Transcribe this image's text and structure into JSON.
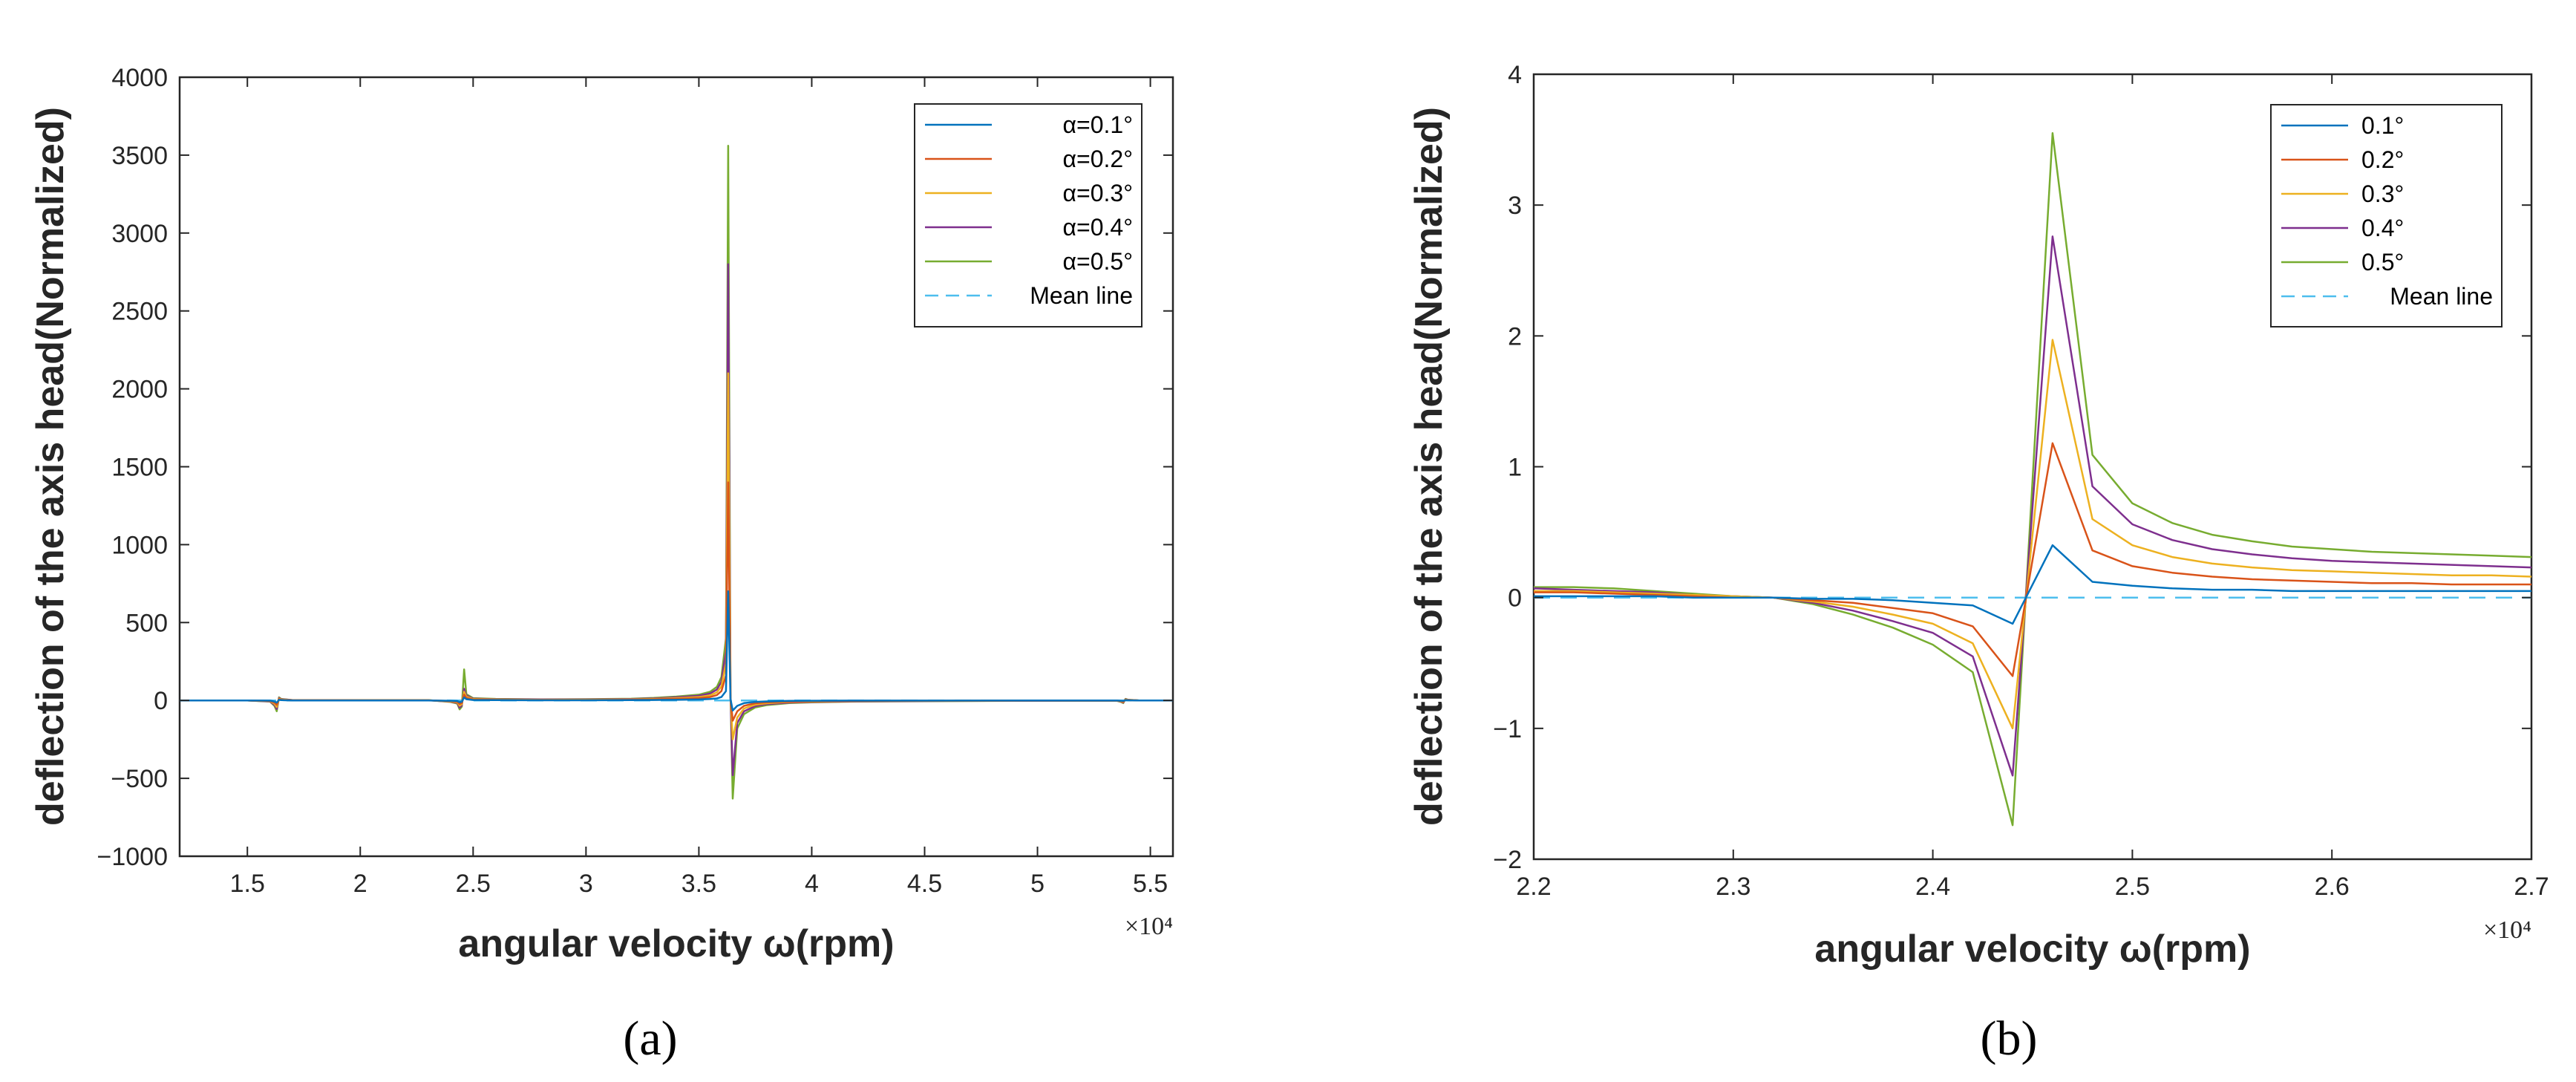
{
  "chart_data": [
    {
      "type": "line",
      "panel_caption": "(a)",
      "xlabel": "angular velocity ω(rpm)",
      "ylabel": "deflection of the axis head(Normalized)",
      "x_multiplier": "×10⁴",
      "xlim": [
        12000,
        56000
      ],
      "ylim": [
        -1000,
        4000
      ],
      "xticks": [
        15000,
        20000,
        25000,
        30000,
        35000,
        40000,
        45000,
        50000,
        55000
      ],
      "xtick_labels": [
        "1.5",
        "2",
        "2.5",
        "3",
        "3.5",
        "4",
        "4.5",
        "5",
        "5.5"
      ],
      "yticks": [
        -1000,
        -500,
        0,
        500,
        1000,
        1500,
        2000,
        2500,
        3000,
        3500,
        4000
      ],
      "ytick_labels": [
        "−1000",
        "−500",
        "0",
        "500",
        "1000",
        "1500",
        "2000",
        "2500",
        "3000",
        "3500",
        "4000"
      ],
      "legend_position": "top-right",
      "grid": false,
      "x": [
        12000,
        15000,
        16000,
        16200,
        16300,
        16400,
        16500,
        17000,
        20000,
        23000,
        24000,
        24300,
        24400,
        24500,
        24600,
        24700,
        25000,
        26000,
        28000,
        30000,
        32000,
        33000,
        34000,
        35000,
        35500,
        35800,
        36000,
        36200,
        36300,
        36400,
        36500,
        36700,
        37000,
        37500,
        38000,
        39000,
        40000,
        42000,
        45000,
        50000,
        53500,
        53700,
        53800,
        53900,
        54000,
        54500,
        56000
      ],
      "series": [
        {
          "name": "α=0.1°",
          "color": "#0072BD",
          "dash": false,
          "values": [
            0,
            0,
            -1,
            -7,
            -14,
            4,
            2,
            0,
            0,
            0,
            -2,
            -4,
            -11,
            -8,
            19,
            8,
            3,
            2,
            1,
            1,
            2,
            3,
            4,
            6,
            9,
            13,
            22,
            60,
            700,
            10,
            -65,
            -35,
            -17,
            -9,
            -6,
            -3,
            -2,
            -1,
            -1,
            0,
            0,
            -2,
            -3,
            2,
            1,
            0,
            0
          ]
        },
        {
          "name": "α=0.2°",
          "color": "#D95319",
          "dash": false,
          "values": [
            0,
            0,
            -3,
            -14,
            -28,
            8,
            4,
            1,
            1,
            1,
            -4,
            -8,
            -23,
            -16,
            37,
            16,
            6,
            4,
            3,
            3,
            5,
            7,
            10,
            15,
            22,
            35,
            60,
            160,
            1400,
            20,
            -130,
            -70,
            -35,
            -18,
            -12,
            -7,
            -5,
            -3,
            -2,
            -1,
            -1,
            -4,
            -7,
            4,
            2,
            0,
            0
          ]
        },
        {
          "name": "α=0.3°",
          "color": "#EDB120",
          "dash": false,
          "values": [
            0,
            0,
            -4,
            -21,
            -42,
            12,
            6,
            1,
            1,
            1,
            -6,
            -12,
            -34,
            -24,
            56,
            24,
            9,
            6,
            4,
            5,
            7,
            10,
            15,
            22,
            33,
            52,
            90,
            240,
            2100,
            30,
            -250,
            -110,
            -52,
            -27,
            -18,
            -10,
            -7,
            -4,
            -3,
            -1,
            -1,
            -6,
            -10,
            6,
            3,
            0,
            0
          ]
        },
        {
          "name": "α=0.4°",
          "color": "#7E2F8E",
          "dash": false,
          "values": [
            0,
            0,
            -6,
            -28,
            -55,
            16,
            8,
            2,
            1,
            1,
            -8,
            -16,
            -46,
            -32,
            75,
            32,
            12,
            8,
            6,
            6,
            9,
            13,
            20,
            30,
            45,
            70,
            120,
            320,
            2800,
            40,
            -480,
            -145,
            -70,
            -36,
            -24,
            -14,
            -10,
            -6,
            -4,
            -2,
            -1,
            -8,
            -14,
            8,
            4,
            0,
            0
          ]
        },
        {
          "name": "α=0.5°",
          "color": "#77AC30",
          "dash": false,
          "values": [
            0,
            0,
            -7,
            -35,
            -69,
            20,
            10,
            2,
            2,
            2,
            -10,
            -20,
            -57,
            -40,
            199,
            40,
            15,
            10,
            7,
            8,
            11,
            16,
            25,
            37,
            56,
            87,
            150,
            400,
            3560,
            50,
            -630,
            -180,
            -88,
            -45,
            -30,
            -17,
            -12,
            -7,
            -5,
            -2,
            -2,
            -10,
            -17,
            10,
            5,
            0,
            0
          ]
        },
        {
          "name": "Mean line",
          "color": "#4DBEEE",
          "dash": true,
          "values": [
            0,
            0,
            0,
            0,
            0,
            0,
            0,
            0,
            0,
            0,
            0,
            0,
            0,
            0,
            0,
            0,
            0,
            0,
            0,
            0,
            0,
            0,
            0,
            0,
            0,
            0,
            0,
            0,
            0,
            0,
            0,
            0,
            0,
            0,
            0,
            0,
            0,
            0,
            0,
            0,
            0,
            0,
            0,
            0,
            0,
            0,
            0
          ]
        }
      ]
    },
    {
      "type": "line",
      "panel_caption": "(b)",
      "xlabel": "angular velocity ω(rpm)",
      "ylabel": "deflection of the axis head(Normalized)",
      "x_multiplier": "×10⁴",
      "xlim": [
        22000,
        27000
      ],
      "ylim": [
        -2,
        4
      ],
      "xticks": [
        22000,
        23000,
        24000,
        25000,
        26000,
        27000
      ],
      "xtick_labels": [
        "2.2",
        "2.3",
        "2.4",
        "2.5",
        "2.6",
        "2.7"
      ],
      "yticks": [
        -2,
        -1,
        0,
        1,
        2,
        3,
        4
      ],
      "ytick_labels": [
        "−2",
        "−1",
        "0",
        "1",
        "2",
        "3",
        "4"
      ],
      "legend_position": "top-right",
      "grid": false,
      "x": [
        22000,
        22200,
        22400,
        22600,
        22800,
        23000,
        23200,
        23400,
        23600,
        23800,
        24000,
        24200,
        24400,
        24600,
        24800,
        25000,
        25200,
        25400,
        25600,
        25800,
        26000,
        26200,
        26400,
        26600,
        26800,
        27000
      ],
      "series": [
        {
          "name": "0.1°",
          "color": "#0072BD",
          "dash": false,
          "values": [
            0.01,
            0.01,
            0.01,
            0.01,
            0.0,
            0.0,
            0.0,
            -0.01,
            -0.01,
            -0.02,
            -0.04,
            -0.06,
            -0.2,
            0.4,
            0.12,
            0.09,
            0.07,
            0.06,
            0.06,
            0.05,
            0.05,
            0.05,
            0.05,
            0.05,
            0.05,
            0.05
          ]
        },
        {
          "name": "0.2°",
          "color": "#D95319",
          "dash": false,
          "values": [
            0.04,
            0.04,
            0.03,
            0.02,
            0.01,
            0.0,
            0.0,
            -0.02,
            -0.04,
            -0.08,
            -0.12,
            -0.22,
            -0.6,
            1.18,
            0.36,
            0.24,
            0.19,
            0.16,
            0.14,
            0.13,
            0.12,
            0.11,
            0.11,
            0.1,
            0.1,
            0.1
          ]
        },
        {
          "name": "0.3°",
          "color": "#EDB120",
          "dash": false,
          "values": [
            0.05,
            0.05,
            0.04,
            0.03,
            0.02,
            0.01,
            0.0,
            -0.03,
            -0.07,
            -0.13,
            -0.2,
            -0.35,
            -1.0,
            1.97,
            0.6,
            0.4,
            0.31,
            0.26,
            0.23,
            0.21,
            0.2,
            0.19,
            0.18,
            0.17,
            0.17,
            0.16
          ]
        },
        {
          "name": "0.4°",
          "color": "#7E2F8E",
          "dash": false,
          "values": [
            0.07,
            0.06,
            0.05,
            0.04,
            0.02,
            0.01,
            0.0,
            -0.04,
            -0.1,
            -0.18,
            -0.27,
            -0.45,
            -1.36,
            2.76,
            0.85,
            0.56,
            0.44,
            0.37,
            0.33,
            0.3,
            0.28,
            0.27,
            0.26,
            0.25,
            0.24,
            0.23
          ]
        },
        {
          "name": "0.5°",
          "color": "#77AC30",
          "dash": false,
          "values": [
            0.08,
            0.08,
            0.07,
            0.05,
            0.03,
            0.01,
            0.0,
            -0.05,
            -0.13,
            -0.23,
            -0.36,
            -0.57,
            -1.74,
            3.55,
            1.09,
            0.72,
            0.57,
            0.48,
            0.43,
            0.39,
            0.37,
            0.35,
            0.34,
            0.33,
            0.32,
            0.31
          ]
        },
        {
          "name": "Mean line",
          "color": "#4DBEEE",
          "dash": true,
          "values": [
            0,
            0,
            0,
            0,
            0,
            0,
            0,
            0,
            0,
            0,
            0,
            0,
            0,
            0,
            0,
            0,
            0,
            0,
            0,
            0,
            0,
            0,
            0,
            0,
            0,
            0
          ]
        }
      ]
    }
  ]
}
